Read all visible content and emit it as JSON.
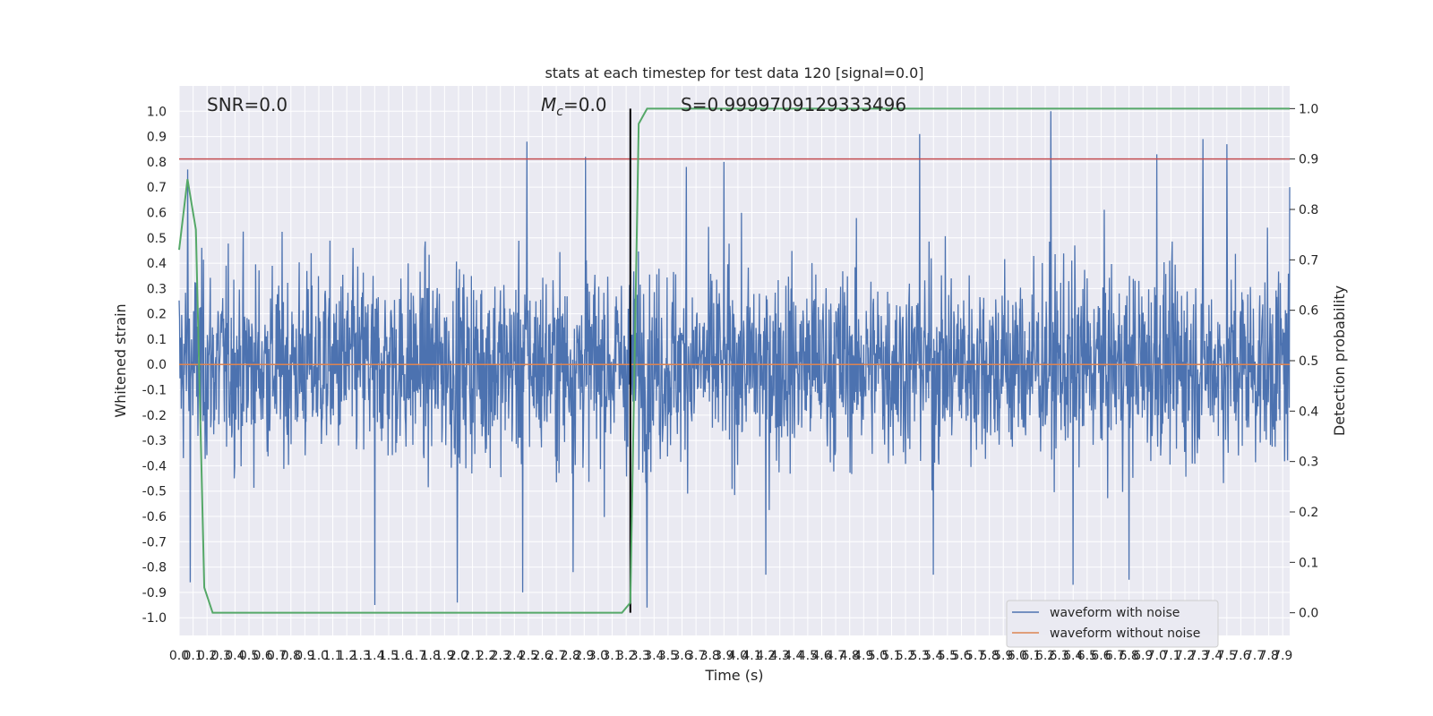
{
  "chart_data": {
    "type": "line",
    "title": "stats at each timestep for test data 120 [signal=0.0]",
    "xlabel": "Time (s)",
    "ylabel": "Whitened strain",
    "y2label": "Detection probability",
    "xlim": [
      0.0,
      7.95
    ],
    "ylim": [
      -1.07,
      1.1
    ],
    "y2lim": [
      -0.045,
      1.045
    ],
    "x_tick_step": 0.1,
    "x_tick_count": 80,
    "yticks": [
      -1.0,
      -0.9,
      -0.8,
      -0.7,
      -0.6,
      -0.5,
      -0.4,
      -0.3,
      -0.2,
      -0.1,
      0.0,
      0.1,
      0.2,
      0.3,
      0.4,
      0.5,
      0.6,
      0.7,
      0.8,
      0.9,
      1.0
    ],
    "y2ticks": [
      0.0,
      0.1,
      0.2,
      0.3,
      0.4,
      0.5,
      0.6,
      0.7,
      0.8,
      0.9,
      1.0
    ],
    "grid": true,
    "legend_position": "bottom-right",
    "annotations": {
      "snr": "SNR=0.0",
      "mc_symbol": "M",
      "mc_sub": "c",
      "mc_value": "=0.0",
      "s": "S=0.9999709129333496"
    },
    "threshold": {
      "axis": "right",
      "value": 0.9,
      "color": "#c44e52"
    },
    "marker_line": {
      "x": 3.23,
      "from": 0.0,
      "to": 1.0,
      "axis": "right",
      "color": "#000000"
    },
    "series": [
      {
        "name": "waveform with noise",
        "axis": "left",
        "color": "#4c72b0",
        "style": "dense-noise",
        "sigma": 0.19,
        "peaks_high": [
          [
            0.06,
            0.77
          ],
          [
            2.49,
            0.88
          ],
          [
            2.91,
            0.82
          ],
          [
            3.63,
            0.78
          ],
          [
            3.9,
            0.8
          ],
          [
            5.3,
            0.91
          ],
          [
            6.24,
            1.0
          ],
          [
            7.0,
            0.83
          ],
          [
            7.33,
            0.89
          ],
          [
            7.5,
            0.87
          ],
          [
            7.95,
            0.7
          ]
        ],
        "peaks_low": [
          [
            0.08,
            -0.86
          ],
          [
            1.4,
            -0.95
          ],
          [
            1.99,
            -0.94
          ],
          [
            2.46,
            -0.9
          ],
          [
            2.82,
            -0.82
          ],
          [
            3.35,
            -0.96
          ],
          [
            4.2,
            -0.83
          ],
          [
            5.4,
            -0.83
          ],
          [
            6.4,
            -0.87
          ],
          [
            6.8,
            -0.85
          ]
        ]
      },
      {
        "name": "waveform without noise",
        "axis": "left",
        "color": "#dd8452",
        "style": "line",
        "x": [
          0.0,
          7.95
        ],
        "y": [
          0.0,
          0.0
        ]
      },
      {
        "name": "detection probability",
        "axis": "right",
        "color": "#55a868",
        "style": "line",
        "x": [
          0.0,
          0.06,
          0.12,
          0.18,
          0.24,
          3.17,
          3.23,
          3.29,
          3.35
        ],
        "y": [
          0.72,
          0.86,
          0.76,
          0.05,
          0.0,
          0.0,
          0.02,
          0.97,
          1.0
        ],
        "x_end": 7.95,
        "y_end": 1.0
      }
    ]
  }
}
